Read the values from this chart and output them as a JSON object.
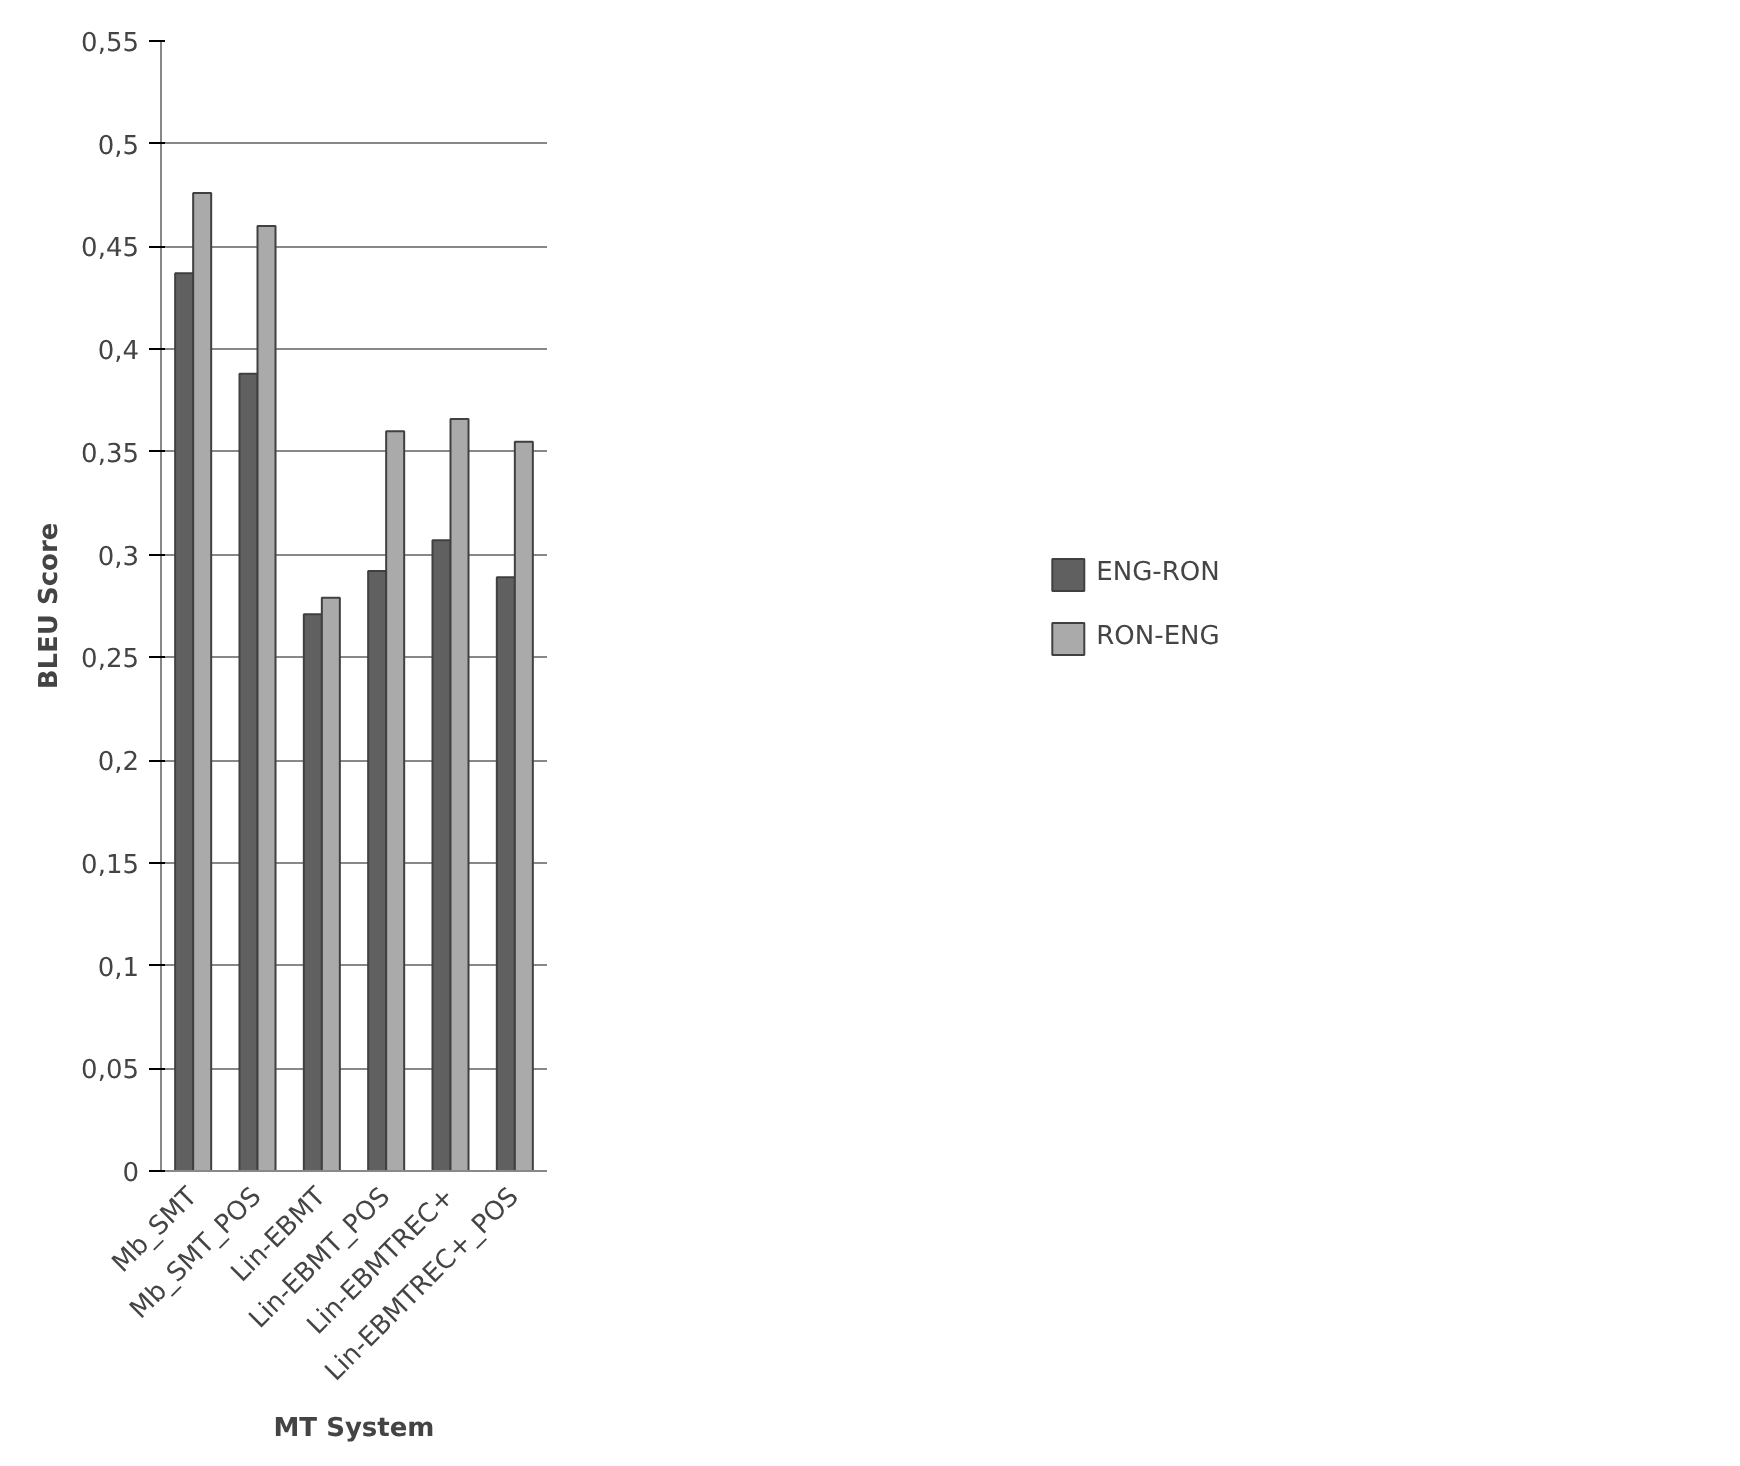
{
  "chart_data": {
    "type": "bar",
    "xlabel": "MT System",
    "ylabel": "BLEU Score",
    "categories": [
      "Mb_SMT",
      "Mb_SMT_POS",
      "Lin-EBMT",
      "Lin-EBMT_POS",
      "Lin-EBMTREC+",
      "Lin-EBMTREC+_POS"
    ],
    "series": [
      {
        "name": "ENG-RON",
        "color": "#606060",
        "values": [
          0.437,
          0.388,
          0.271,
          0.292,
          0.307,
          0.289
        ]
      },
      {
        "name": "RON-ENG",
        "color": "#aaaaaa",
        "values": [
          0.476,
          0.46,
          0.279,
          0.36,
          0.366,
          0.355
        ]
      }
    ],
    "ylim": [
      0,
      0.55
    ],
    "yticks": [
      {
        "value": 0,
        "label": "0"
      },
      {
        "value": 0.05,
        "label": "0,05"
      },
      {
        "value": 0.1,
        "label": "0,1"
      },
      {
        "value": 0.15,
        "label": "0,15"
      },
      {
        "value": 0.2,
        "label": "0,2"
      },
      {
        "value": 0.25,
        "label": "0,25"
      },
      {
        "value": 0.3,
        "label": "0,3"
      },
      {
        "value": 0.35,
        "label": "0,35"
      },
      {
        "value": 0.4,
        "label": "0,4"
      },
      {
        "value": 0.45,
        "label": "0,45"
      },
      {
        "value": 0.5,
        "label": "0,5"
      },
      {
        "value": 0.55,
        "label": "0,55"
      }
    ],
    "grid": "y",
    "legend": "right"
  }
}
